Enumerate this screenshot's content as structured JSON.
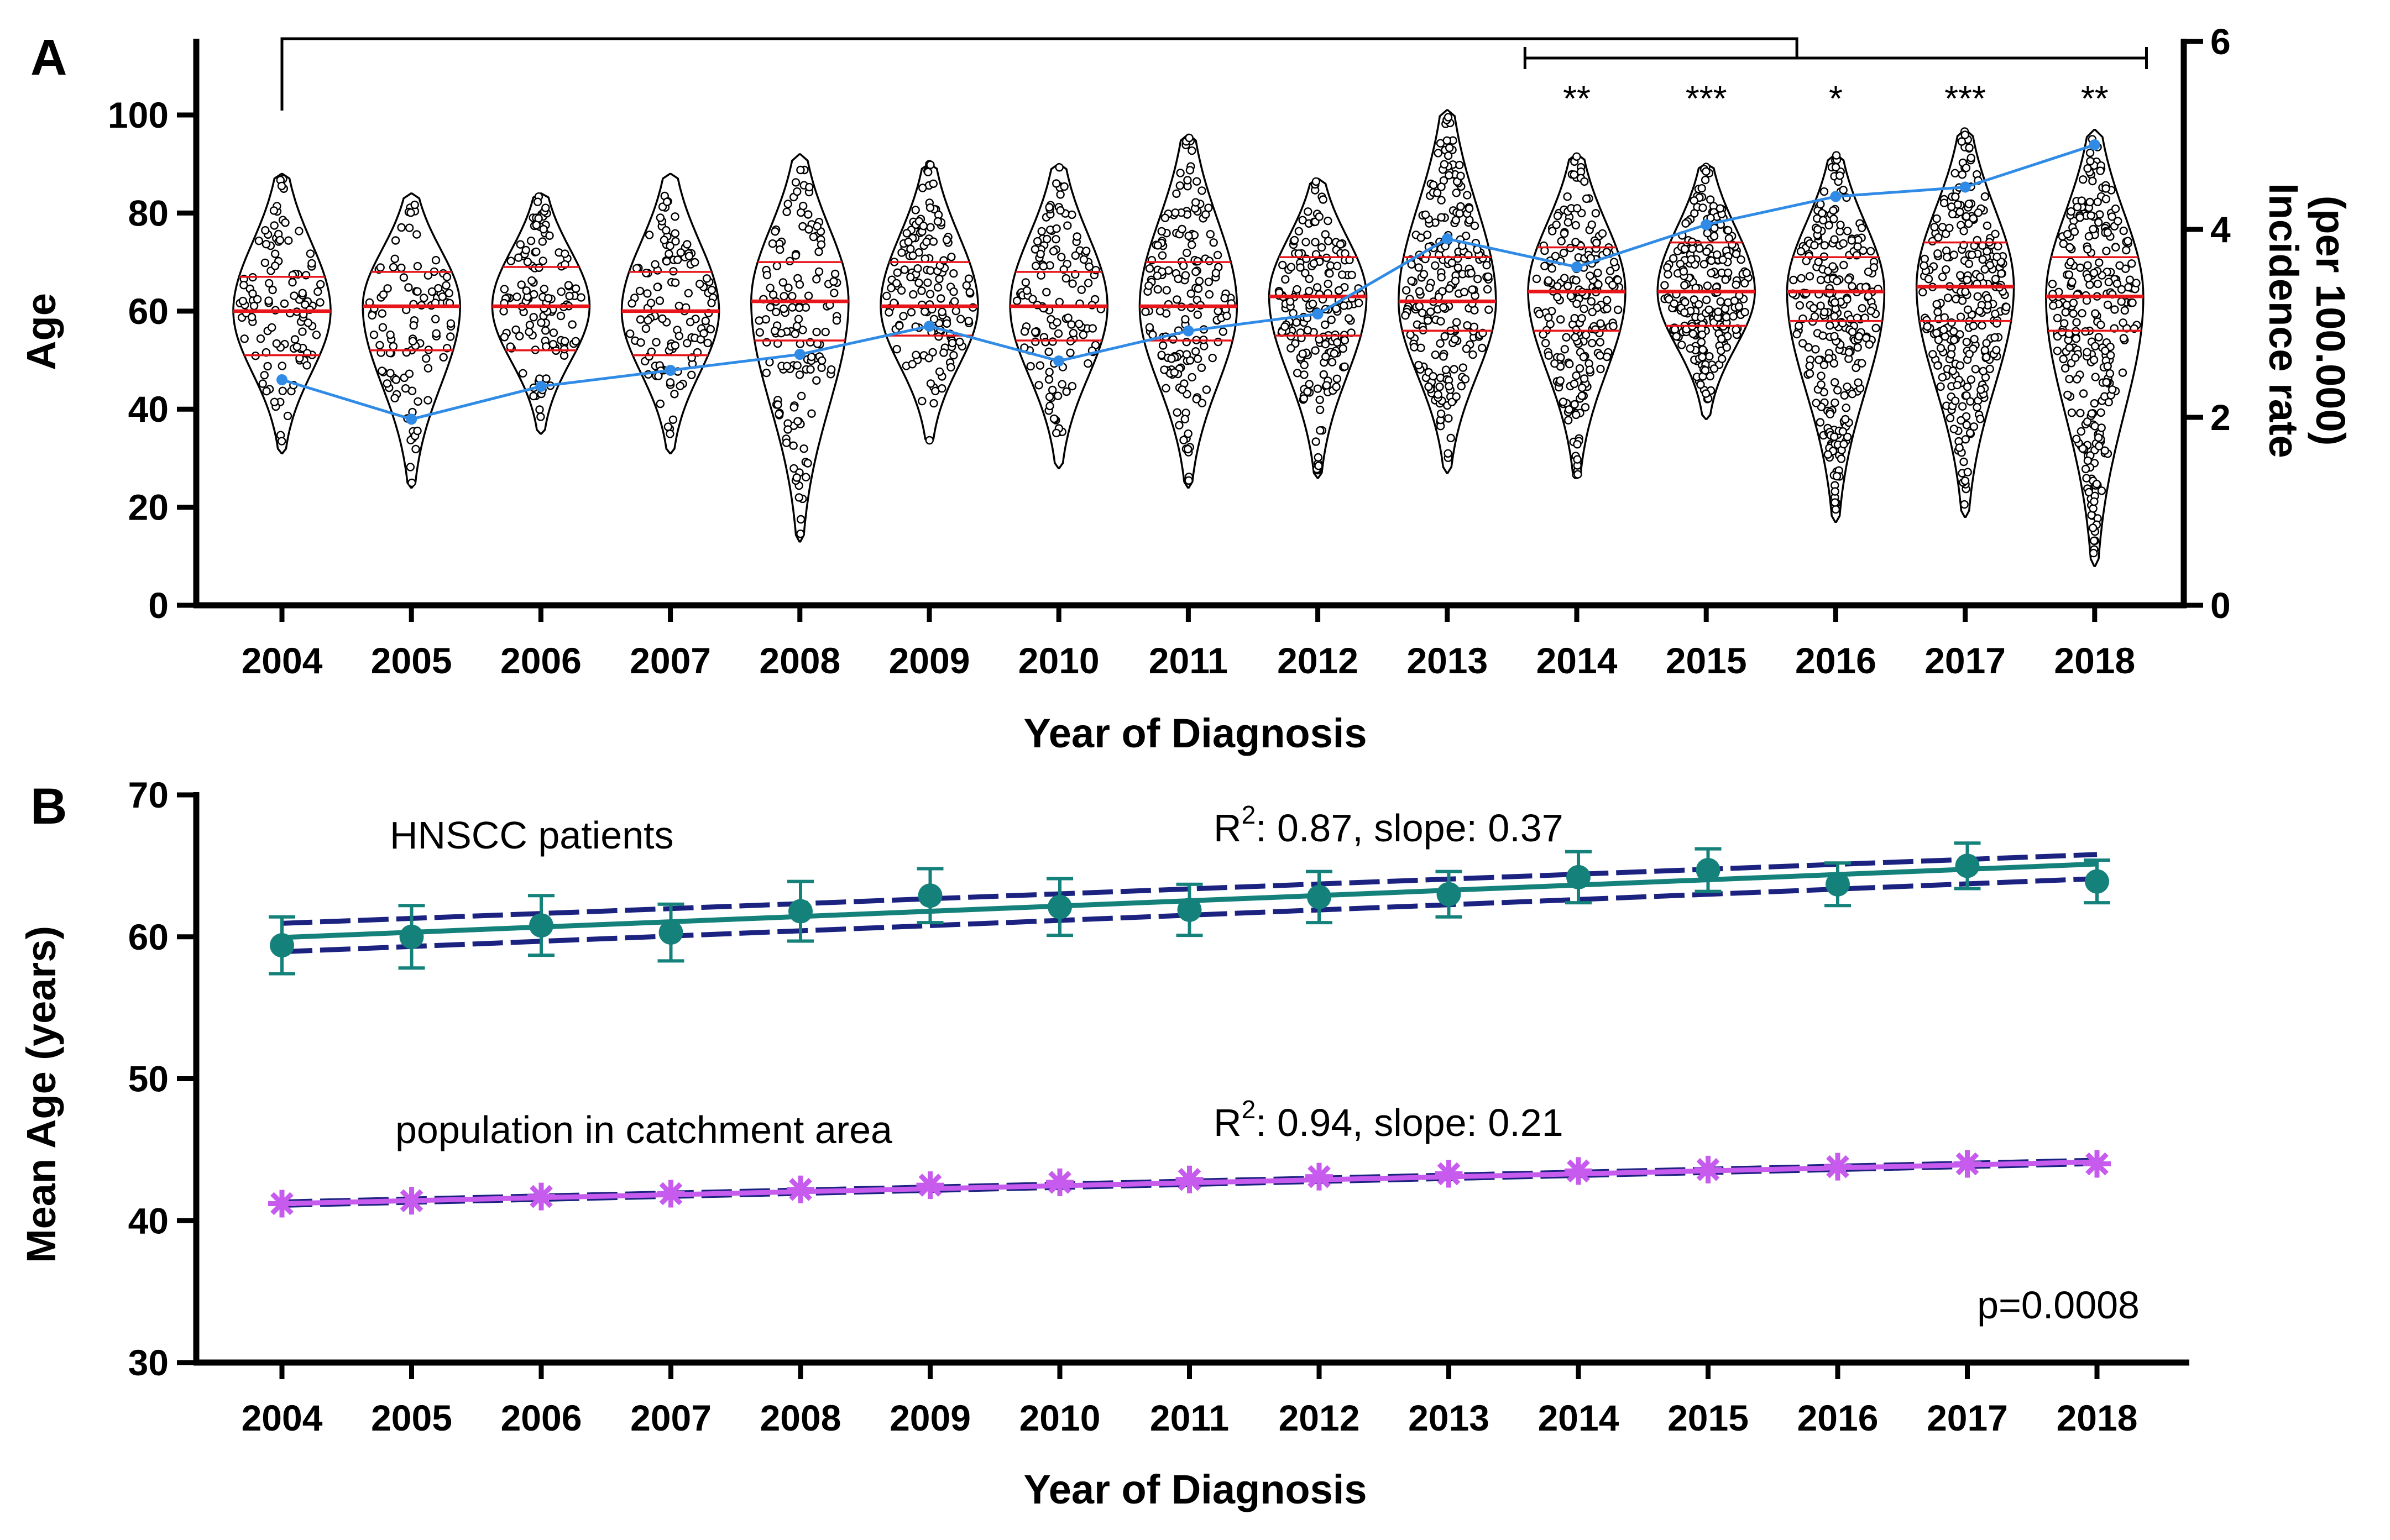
{
  "chart_data": [
    {
      "panel": "A",
      "type": "violin",
      "xlabel": "Year of Diagnosis",
      "ylabel": "Age",
      "y2label_line1": "Incidence rate",
      "y2label_line2": "(per 100.000)",
      "categories": [
        "2004",
        "2005",
        "2006",
        "2007",
        "2008",
        "2009",
        "2010",
        "2011",
        "2012",
        "2013",
        "2014",
        "2015",
        "2016",
        "2017",
        "2018"
      ],
      "ylim": [
        0,
        115
      ],
      "yticks": [
        0,
        20,
        40,
        60,
        80,
        100
      ],
      "y2lim": [
        0,
        6
      ],
      "y2ticks": [
        0,
        2,
        4,
        6
      ],
      "violins": [
        {
          "year": "2004",
          "min": 31,
          "max": 88,
          "q1": 51,
          "median": 60,
          "q3": 67,
          "n": 110,
          "width": 1.0
        },
        {
          "year": "2005",
          "min": 24,
          "max": 84,
          "q1": 52,
          "median": 61,
          "q3": 68,
          "n": 100,
          "width": 1.0
        },
        {
          "year": "2006",
          "min": 35,
          "max": 84,
          "q1": 52,
          "median": 61,
          "q3": 69,
          "n": 120,
          "width": 1.0
        },
        {
          "year": "2007",
          "min": 31,
          "max": 88,
          "q1": 51,
          "median": 60,
          "q3": 68,
          "n": 120,
          "width": 1.0
        },
        {
          "year": "2008",
          "min": 13,
          "max": 92,
          "q1": 54,
          "median": 62,
          "q3": 70,
          "n": 140,
          "width": 1.0
        },
        {
          "year": "2009",
          "min": 33,
          "max": 90,
          "q1": 55,
          "median": 61,
          "q3": 70,
          "n": 150,
          "width": 1.0
        },
        {
          "year": "2010",
          "min": 28,
          "max": 90,
          "q1": 54,
          "median": 61,
          "q3": 68,
          "n": 130,
          "width": 1.0
        },
        {
          "year": "2011",
          "min": 24,
          "max": 96,
          "q1": 54,
          "median": 61,
          "q3": 70,
          "n": 170,
          "width": 1.0
        },
        {
          "year": "2012",
          "min": 26,
          "max": 87,
          "q1": 55,
          "median": 63,
          "q3": 71,
          "n": 180,
          "width": 1.0
        },
        {
          "year": "2013",
          "min": 27,
          "max": 101,
          "q1": 56,
          "median": 62,
          "q3": 71,
          "n": 230,
          "width": 1.0
        },
        {
          "year": "2014",
          "min": 26,
          "max": 92,
          "q1": 56,
          "median": 64,
          "q3": 73,
          "n": 210,
          "width": 1.0
        },
        {
          "year": "2015",
          "min": 38,
          "max": 90,
          "q1": 57,
          "median": 64,
          "q3": 74,
          "n": 240,
          "width": 1.0
        },
        {
          "year": "2016",
          "min": 17,
          "max": 92,
          "q1": 58,
          "median": 64,
          "q3": 71,
          "n": 260,
          "width": 1.0
        },
        {
          "year": "2017",
          "min": 18,
          "max": 97,
          "q1": 58,
          "median": 65,
          "q3": 74,
          "n": 270,
          "width": 1.0
        },
        {
          "year": "2018",
          "min": 8,
          "max": 97,
          "q1": 56,
          "median": 63,
          "q3": 71,
          "n": 280,
          "width": 1.0
        }
      ],
      "incidence_series": {
        "axis": "right",
        "color": "#2f8be6",
        "values": [
          2.4,
          1.98,
          2.33,
          2.5,
          2.67,
          2.97,
          2.6,
          2.92,
          3.1,
          3.9,
          3.6,
          4.05,
          4.35,
          4.45,
          4.9
        ]
      },
      "significance": [
        {
          "year": "2014",
          "label": "**"
        },
        {
          "year": "2015",
          "label": "***"
        },
        {
          "year": "2016",
          "label": "*"
        },
        {
          "year": "2017",
          "label": "***"
        },
        {
          "year": "2018",
          "label": "**"
        }
      ],
      "brackets": [
        {
          "from": "2004",
          "to": "2015.7"
        },
        {
          "from": "2013.6",
          "to": "2018.4"
        }
      ],
      "colors": {
        "violin_outline": "#000000",
        "quartile_line": "#e8151b",
        "dot_fill": "#ffffff"
      }
    },
    {
      "panel": "B",
      "type": "line",
      "xlabel": "Year of Diagnosis",
      "ylabel": "Mean Age (years)",
      "categories": [
        "2004",
        "2005",
        "2006",
        "2007",
        "2008",
        "2009",
        "2010",
        "2011",
        "2012",
        "2013",
        "2014",
        "2015",
        "2016",
        "2017",
        "2018"
      ],
      "ylim": [
        30,
        70
      ],
      "yticks": [
        30,
        40,
        50,
        60,
        70
      ],
      "series": [
        {
          "name": "HNSCC patients",
          "marker": "circle",
          "color": "#14817a",
          "values": [
            59.4,
            60.0,
            60.8,
            60.3,
            61.8,
            62.9,
            62.1,
            61.9,
            62.8,
            63.0,
            64.2,
            64.7,
            63.7,
            65.0,
            63.9
          ],
          "errors": [
            2.0,
            2.2,
            2.1,
            2.0,
            2.1,
            1.9,
            2.0,
            1.8,
            1.8,
            1.6,
            1.8,
            1.5,
            1.5,
            1.6,
            1.5
          ],
          "fit": {
            "start": 59.95,
            "slope": 0.37
          },
          "ci_upper": {
            "start": 60.95,
            "end": 65.8
          },
          "ci_lower": {
            "start": 58.95,
            "end": 64.1
          },
          "fit_annotation": "R²: 0.87, slope: 0.37"
        },
        {
          "name": "population in catchment area",
          "marker": "asterisk",
          "color": "#c65bee",
          "values": [
            41.2,
            41.4,
            41.7,
            41.9,
            42.2,
            42.5,
            42.7,
            42.9,
            43.1,
            43.3,
            43.5,
            43.6,
            43.8,
            44.0,
            44.0
          ],
          "fit": {
            "start": 41.2,
            "slope": 0.21
          },
          "fit_annotation": "R²: 0.94, slope: 0.21"
        }
      ],
      "ci_color": "#1b2280",
      "p_value": "p=0.0008"
    }
  ],
  "labels": {
    "panel_a": "A",
    "panel_b": "B",
    "a_title_text": "HNSCC patients",
    "b_series1_label": "HNSCC patients",
    "b_series2_label": "population in catchment area",
    "b_series1_r2_prefix": "R",
    "b_series1_r2_sup": "2",
    "b_series1_r2_rest": ": 0.87, slope: 0.37",
    "b_series2_r2_prefix": "R",
    "b_series2_r2_sup": "2",
    "b_series2_r2_rest": ": 0.94, slope: 0.21"
  }
}
